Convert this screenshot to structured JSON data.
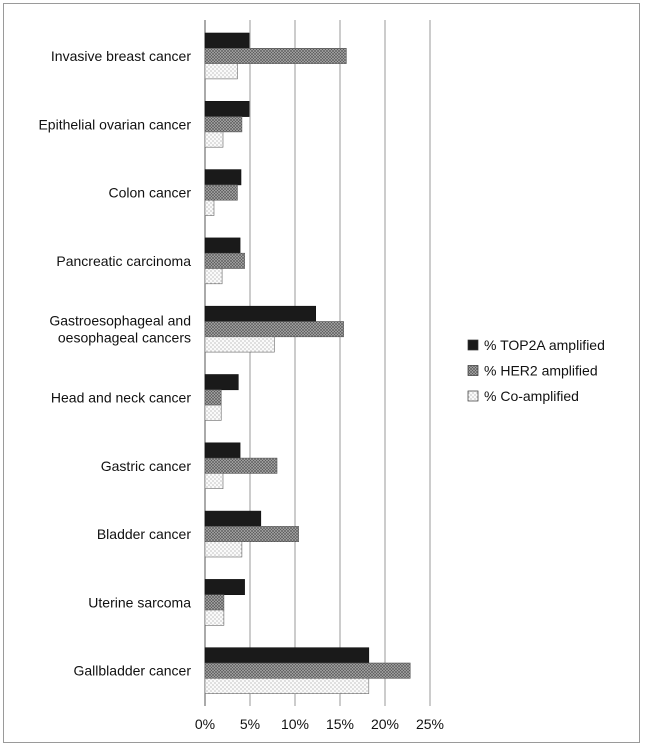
{
  "chart_data": {
    "type": "bar",
    "orientation": "horizontal",
    "categories": [
      "Invasive breast cancer",
      "Epithelial ovarian cancer",
      "Colon cancer",
      "Pancreatic carcinoma",
      "Gastroesophageal and\noesophageal cancers",
      "Head and neck cancer",
      "Gastric cancer",
      "Bladder cancer",
      "Uterine sarcoma",
      "Gallbladder cancer"
    ],
    "series": [
      {
        "name": "% TOP2A amplified",
        "values": [
          4.9,
          4.9,
          4.0,
          3.9,
          12.3,
          3.7,
          3.9,
          6.2,
          4.4,
          18.2
        ],
        "color": "#1a1a1a",
        "pattern": "solid"
      },
      {
        "name": "% HER2 amplified",
        "values": [
          15.7,
          4.1,
          3.6,
          4.4,
          15.4,
          1.8,
          8.0,
          10.4,
          2.1,
          22.8
        ],
        "color": "#8c8c8c",
        "pattern": "crosshatch"
      },
      {
        "name": "% Co-amplified",
        "values": [
          3.6,
          2.0,
          1.0,
          1.9,
          7.7,
          1.8,
          2.0,
          4.1,
          2.1,
          18.2
        ],
        "color": "#f2f2f2",
        "pattern": "dotted"
      }
    ],
    "xlim": [
      0,
      25
    ],
    "xticks": [
      "0%",
      "5%",
      "10%",
      "15%",
      "20%",
      "25%"
    ],
    "grid": true,
    "legend_position": "right"
  }
}
